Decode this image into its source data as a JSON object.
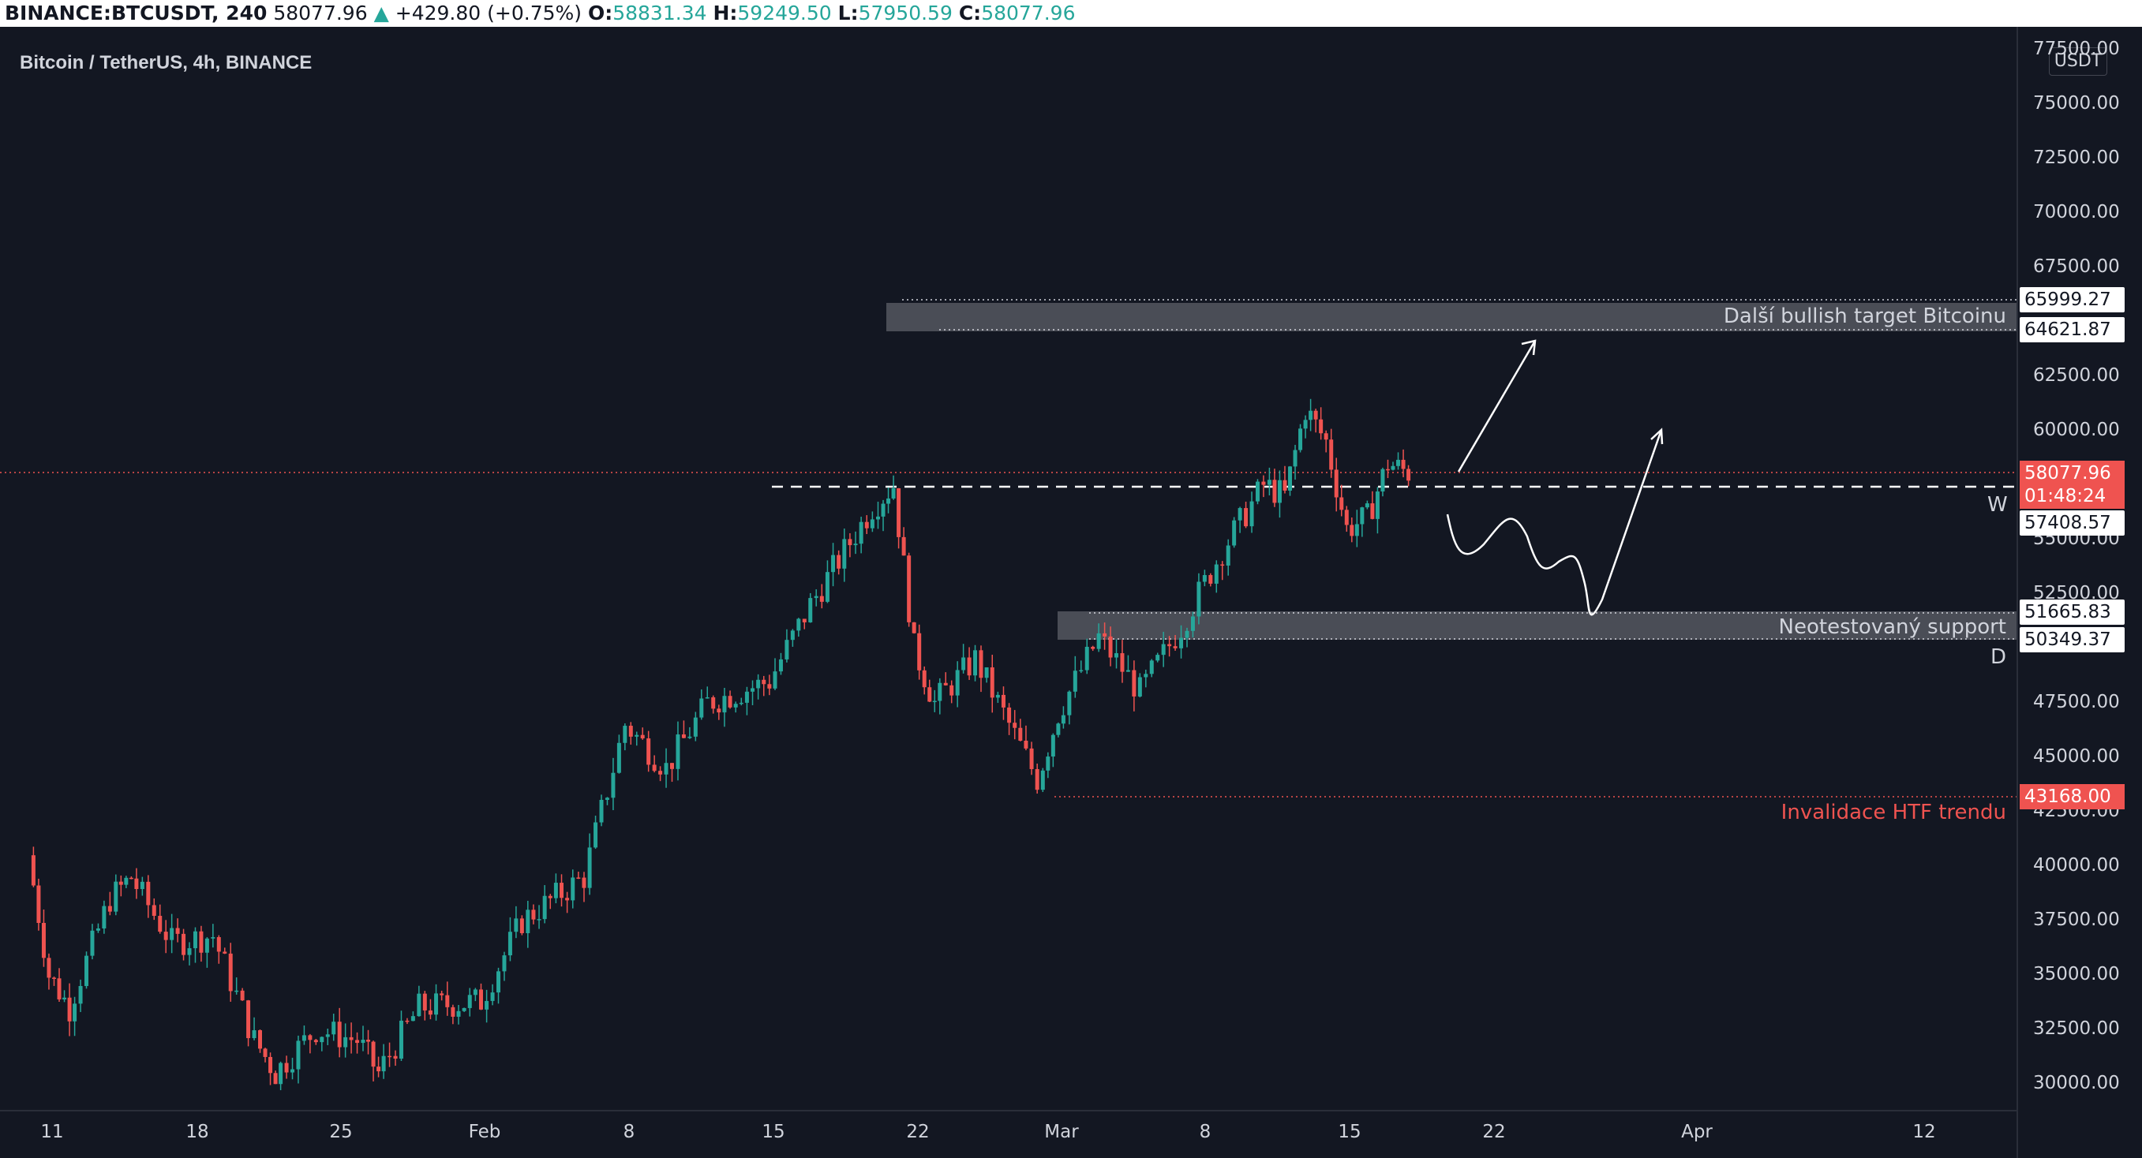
{
  "header": {
    "symbol": "BINANCE:BTCUSDT, 240",
    "last": "58077.96",
    "change_arrow": "▲",
    "change": "+429.80 (+0.75%)",
    "o_label": "O:",
    "o_value": "58831.34",
    "h_label": "H:",
    "h_value": "59249.50",
    "l_label": "L:",
    "l_value": "57950.59",
    "c_label": "C:",
    "c_value": "58077.96"
  },
  "chart_title": "Bitcoin / TetherUS, 4h, BINANCE",
  "currency_button": "USDT",
  "price_axis": [
    "77500.00",
    "75000.00",
    "72500.00",
    "70000.00",
    "67500.00",
    "62500.00",
    "60000.00",
    "55000.00",
    "52500.00",
    "47500.00",
    "45000.00",
    "42500.00",
    "40000.00",
    "37500.00",
    "35000.00",
    "32500.00",
    "30000.00"
  ],
  "time_axis": [
    "11",
    "18",
    "25",
    "Feb",
    "8",
    "15",
    "22",
    "Mar",
    "8",
    "15",
    "22",
    "Apr",
    "12"
  ],
  "price_tags": {
    "target_top": "65999.27",
    "target_bottom": "64621.87",
    "last_price": "58077.96",
    "countdown": "01:48:24",
    "w_level": "57408.57",
    "support_top": "51665.83",
    "support_bottom": "50349.37",
    "invalidation": "43168.00"
  },
  "annotations": {
    "target_zone": "Další bullish target Bitcoinu",
    "support_zone": "Neotestovaný support",
    "invalidation": "Invalidace HTF trendu",
    "w_marker": "W",
    "d_marker": "D"
  },
  "colors": {
    "background": "#131722",
    "up": "#26a69a",
    "down": "#ef5350",
    "text": "#d1d4dc",
    "zone": "#4a4d56"
  },
  "chart_data": {
    "type": "candlestick",
    "title": "Bitcoin / TetherUS, 4h, BINANCE",
    "ylim": [
      29000,
      78500
    ],
    "y_ticks": [
      30000,
      32500,
      35000,
      37500,
      40000,
      42500,
      45000,
      47500,
      52500,
      55000,
      60000,
      62500,
      67500,
      70000,
      72500,
      75000,
      77500
    ],
    "x_ticks": [
      "11",
      "18",
      "25",
      "Feb",
      "8",
      "15",
      "22",
      "Mar",
      "8",
      "15",
      "22",
      "Apr",
      "12"
    ],
    "approx_close_path": [
      [
        "Jan 10",
        40500
      ],
      [
        "Jan 11",
        35000
      ],
      [
        "Jan 12",
        33500
      ],
      [
        "Jan 14",
        38500
      ],
      [
        "Jan 15",
        39500
      ],
      [
        "Jan 17",
        36500
      ],
      [
        "Jan 19",
        36800
      ],
      [
        "Jan 21",
        32000
      ],
      [
        "Jan 22",
        30500
      ],
      [
        "Jan 24",
        32500
      ],
      [
        "Jan 26",
        32000
      ],
      [
        "Jan 27",
        30500
      ],
      [
        "Jan 29",
        33500
      ],
      [
        "Feb 1",
        33800
      ],
      [
        "Feb 3",
        37500
      ],
      [
        "Feb 6",
        39500
      ],
      [
        "Feb 8",
        46500
      ],
      [
        "Feb 10",
        44500
      ],
      [
        "Feb 12",
        47500
      ],
      [
        "Feb 15",
        48500
      ],
      [
        "Feb 17",
        52000
      ],
      [
        "Feb 20",
        56500
      ],
      [
        "Feb 21",
        57500
      ],
      [
        "Feb 22",
        50000
      ],
      [
        "Feb 23",
        47500
      ],
      [
        "Feb 25",
        49500
      ],
      [
        "Feb 28",
        44000
      ],
      [
        "Mar 1",
        47000
      ],
      [
        "Mar 3",
        50500
      ],
      [
        "Mar 5",
        48000
      ],
      [
        "Mar 7",
        51000
      ],
      [
        "Mar 9",
        54500
      ],
      [
        "Mar 11",
        57500
      ],
      [
        "Mar 12",
        57000
      ],
      [
        "Mar 13",
        61000
      ],
      [
        "Mar 14",
        59500
      ],
      [
        "Mar 15",
        55500
      ],
      [
        "Mar 16",
        56000
      ],
      [
        "Mar 17",
        58500
      ],
      [
        "Mar 18",
        58078
      ]
    ],
    "levels": [
      {
        "label": "Další bullish target Bitcoinu",
        "from": 64621.87,
        "to": 65999.27
      },
      {
        "label": "Neotestovaný support",
        "from": 50349.37,
        "to": 51665.83
      },
      {
        "label": "Invalidace HTF trendu",
        "value": 43168.0
      },
      {
        "label": "W",
        "value": 57408.57
      },
      {
        "value": 58077.96
      }
    ]
  }
}
